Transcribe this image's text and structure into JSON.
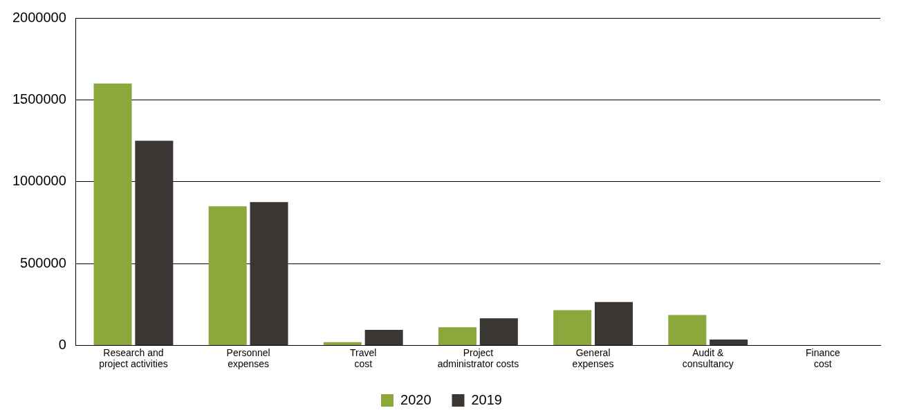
{
  "chart_data": {
    "type": "bar",
    "categories": [
      "Research and project activities",
      "Personnel expenses",
      "Travel cost",
      "Project administrator costs",
      "General expenses",
      "Audit & consultancy",
      "Finance cost"
    ],
    "series": [
      {
        "name": "2020",
        "color": "#8aa83b",
        "values": [
          1600000,
          850000,
          20000,
          110000,
          215000,
          185000,
          0
        ]
      },
      {
        "name": "2019",
        "color": "#3a3633",
        "values": [
          1250000,
          875000,
          95000,
          165000,
          265000,
          35000,
          0
        ]
      }
    ],
    "ylim": [
      0,
      2000000
    ],
    "yticks": [
      0,
      500000,
      1000000,
      1500000,
      2000000
    ],
    "grid": "y",
    "legend": "bottom"
  }
}
